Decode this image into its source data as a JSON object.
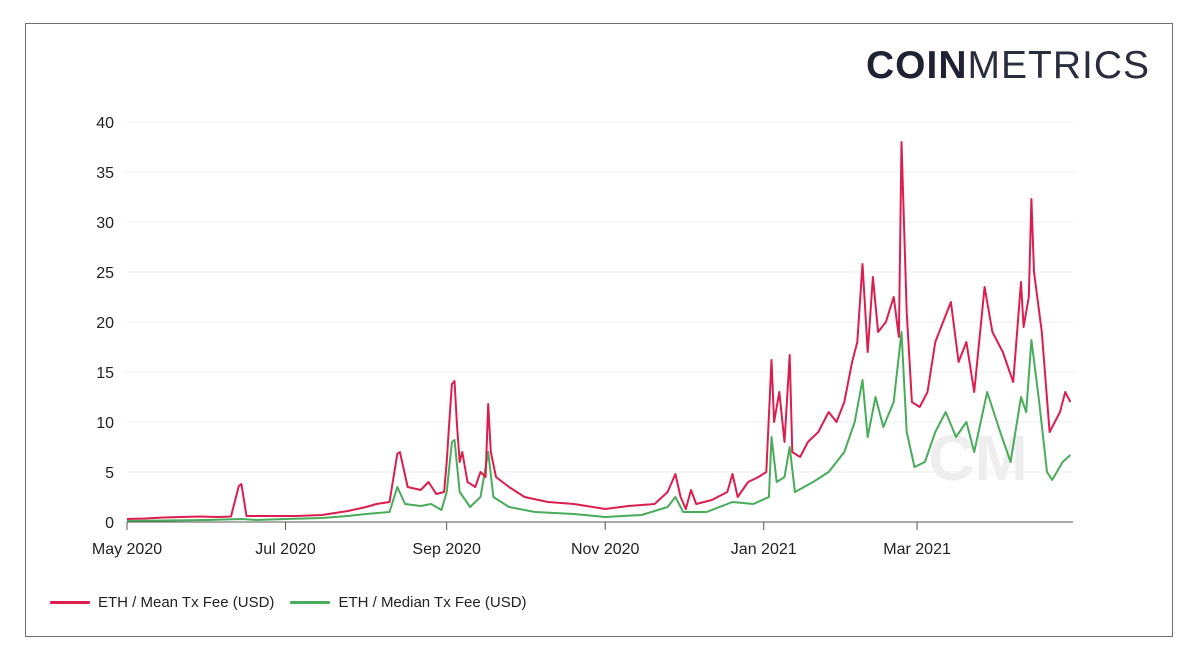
{
  "logo": {
    "bold": "COIN",
    "light": "METRICS",
    "watermark": "CM"
  },
  "colors": {
    "mean": "#dc1e4f",
    "median": "#48ac5a",
    "grid": "#ececec",
    "axis": "#555555"
  },
  "chart_data": {
    "type": "line",
    "title": "",
    "xlabel": "",
    "ylabel": "",
    "ylim": [
      0,
      40
    ],
    "yticks": [
      0,
      5,
      10,
      15,
      20,
      25,
      30,
      35,
      40
    ],
    "xlim": [
      "2020-05-01",
      "2021-04-30"
    ],
    "xticks": [
      {
        "date": "2020-05-01",
        "label": "May 2020"
      },
      {
        "date": "2020-07-01",
        "label": "Jul 2020"
      },
      {
        "date": "2020-09-01",
        "label": "Sep 2020"
      },
      {
        "date": "2020-11-01",
        "label": "Nov 2020"
      },
      {
        "date": "2021-01-01",
        "label": "Jan 2021"
      },
      {
        "date": "2021-03-01",
        "label": "Mar 2021"
      }
    ],
    "grid": true,
    "legend_position": "bottom-left",
    "series": [
      {
        "name": "ETH / Mean Tx Fee (USD)",
        "color": "#dc1e4f",
        "points": [
          [
            "2020-05-01",
            0.3
          ],
          [
            "2020-05-08",
            0.35
          ],
          [
            "2020-05-15",
            0.45
          ],
          [
            "2020-05-22",
            0.5
          ],
          [
            "2020-05-29",
            0.55
          ],
          [
            "2020-06-05",
            0.5
          ],
          [
            "2020-06-10",
            0.55
          ],
          [
            "2020-06-13",
            3.6
          ],
          [
            "2020-06-14",
            3.8
          ],
          [
            "2020-06-16",
            0.6
          ],
          [
            "2020-06-25",
            0.6
          ],
          [
            "2020-07-05",
            0.6
          ],
          [
            "2020-07-15",
            0.7
          ],
          [
            "2020-07-25",
            1.1
          ],
          [
            "2020-08-01",
            1.5
          ],
          [
            "2020-08-05",
            1.8
          ],
          [
            "2020-08-10",
            2.0
          ],
          [
            "2020-08-13",
            6.8
          ],
          [
            "2020-08-14",
            7.0
          ],
          [
            "2020-08-17",
            3.5
          ],
          [
            "2020-08-22",
            3.2
          ],
          [
            "2020-08-25",
            4.0
          ],
          [
            "2020-08-28",
            2.8
          ],
          [
            "2020-08-31",
            3.0
          ],
          [
            "2020-09-01",
            6.0
          ],
          [
            "2020-09-02",
            10.0
          ],
          [
            "2020-09-03",
            13.8
          ],
          [
            "2020-09-04",
            14.1
          ],
          [
            "2020-09-05",
            9.5
          ],
          [
            "2020-09-06",
            6.0
          ],
          [
            "2020-09-07",
            7.0
          ],
          [
            "2020-09-09",
            4.0
          ],
          [
            "2020-09-12",
            3.5
          ],
          [
            "2020-09-14",
            5.0
          ],
          [
            "2020-09-16",
            4.5
          ],
          [
            "2020-09-17",
            11.8
          ],
          [
            "2020-09-18",
            7.0
          ],
          [
            "2020-09-20",
            4.5
          ],
          [
            "2020-09-25",
            3.5
          ],
          [
            "2020-10-01",
            2.5
          ],
          [
            "2020-10-10",
            2.0
          ],
          [
            "2020-10-20",
            1.8
          ],
          [
            "2020-11-01",
            1.3
          ],
          [
            "2020-11-10",
            1.6
          ],
          [
            "2020-11-20",
            1.8
          ],
          [
            "2020-11-25",
            3.0
          ],
          [
            "2020-11-28",
            4.8
          ],
          [
            "2020-11-30",
            2.5
          ],
          [
            "2020-12-02",
            1.3
          ],
          [
            "2020-12-04",
            3.2
          ],
          [
            "2020-12-06",
            1.8
          ],
          [
            "2020-12-12",
            2.2
          ],
          [
            "2020-12-18",
            3.0
          ],
          [
            "2020-12-20",
            4.8
          ],
          [
            "2020-12-22",
            2.5
          ],
          [
            "2020-12-26",
            4.0
          ],
          [
            "2020-12-30",
            4.5
          ],
          [
            "2021-01-02",
            5.0
          ],
          [
            "2021-01-04",
            16.2
          ],
          [
            "2021-01-05",
            10.0
          ],
          [
            "2021-01-07",
            13.0
          ],
          [
            "2021-01-09",
            8.0
          ],
          [
            "2021-01-11",
            16.7
          ],
          [
            "2021-01-12",
            7.0
          ],
          [
            "2021-01-15",
            6.5
          ],
          [
            "2021-01-18",
            8.0
          ],
          [
            "2021-01-22",
            9.0
          ],
          [
            "2021-01-26",
            11.0
          ],
          [
            "2021-01-29",
            10.0
          ],
          [
            "2021-02-01",
            12.0
          ],
          [
            "2021-02-04",
            16.0
          ],
          [
            "2021-02-06",
            18.0
          ],
          [
            "2021-02-08",
            25.8
          ],
          [
            "2021-02-10",
            17.0
          ],
          [
            "2021-02-12",
            24.5
          ],
          [
            "2021-02-14",
            19.0
          ],
          [
            "2021-02-17",
            20.0
          ],
          [
            "2021-02-20",
            22.5
          ],
          [
            "2021-02-22",
            18.5
          ],
          [
            "2021-02-23",
            38.0
          ],
          [
            "2021-02-25",
            21.0
          ],
          [
            "2021-02-27",
            12.0
          ],
          [
            "2021-03-02",
            11.5
          ],
          [
            "2021-03-05",
            13.0
          ],
          [
            "2021-03-08",
            18.0
          ],
          [
            "2021-03-11",
            20.0
          ],
          [
            "2021-03-14",
            22.0
          ],
          [
            "2021-03-17",
            16.0
          ],
          [
            "2021-03-20",
            18.0
          ],
          [
            "2021-03-23",
            13.0
          ],
          [
            "2021-03-27",
            23.5
          ],
          [
            "2021-03-30",
            19.0
          ],
          [
            "2021-04-03",
            17.0
          ],
          [
            "2021-04-07",
            14.0
          ],
          [
            "2021-04-10",
            24.0
          ],
          [
            "2021-04-11",
            19.5
          ],
          [
            "2021-04-13",
            22.5
          ],
          [
            "2021-04-14",
            32.3
          ],
          [
            "2021-04-15",
            25.0
          ],
          [
            "2021-04-18",
            19.0
          ],
          [
            "2021-04-21",
            9.0
          ],
          [
            "2021-04-25",
            11.0
          ],
          [
            "2021-04-27",
            13.0
          ],
          [
            "2021-04-29",
            12.0
          ]
        ]
      },
      {
        "name": "ETH / Median Tx Fee (USD)",
        "color": "#48ac5a",
        "points": [
          [
            "2020-05-01",
            0.1
          ],
          [
            "2020-05-15",
            0.15
          ],
          [
            "2020-06-01",
            0.2
          ],
          [
            "2020-06-14",
            0.3
          ],
          [
            "2020-06-20",
            0.2
          ],
          [
            "2020-07-01",
            0.3
          ],
          [
            "2020-07-15",
            0.4
          ],
          [
            "2020-07-25",
            0.6
          ],
          [
            "2020-08-01",
            0.8
          ],
          [
            "2020-08-10",
            1.0
          ],
          [
            "2020-08-13",
            3.5
          ],
          [
            "2020-08-16",
            1.8
          ],
          [
            "2020-08-22",
            1.6
          ],
          [
            "2020-08-26",
            1.8
          ],
          [
            "2020-08-30",
            1.2
          ],
          [
            "2020-09-01",
            3.0
          ],
          [
            "2020-09-03",
            8.0
          ],
          [
            "2020-09-04",
            8.2
          ],
          [
            "2020-09-06",
            3.0
          ],
          [
            "2020-09-10",
            1.5
          ],
          [
            "2020-09-14",
            2.5
          ],
          [
            "2020-09-17",
            7.0
          ],
          [
            "2020-09-19",
            2.5
          ],
          [
            "2020-09-25",
            1.5
          ],
          [
            "2020-10-05",
            1.0
          ],
          [
            "2020-10-20",
            0.8
          ],
          [
            "2020-11-01",
            0.5
          ],
          [
            "2020-11-15",
            0.7
          ],
          [
            "2020-11-25",
            1.5
          ],
          [
            "2020-11-28",
            2.5
          ],
          [
            "2020-12-01",
            1.0
          ],
          [
            "2020-12-10",
            1.0
          ],
          [
            "2020-12-20",
            2.0
          ],
          [
            "2020-12-28",
            1.8
          ],
          [
            "2021-01-03",
            2.5
          ],
          [
            "2021-01-04",
            8.5
          ],
          [
            "2021-01-06",
            4.0
          ],
          [
            "2021-01-09",
            4.5
          ],
          [
            "2021-01-11",
            7.5
          ],
          [
            "2021-01-13",
            3.0
          ],
          [
            "2021-01-20",
            4.0
          ],
          [
            "2021-01-26",
            5.0
          ],
          [
            "2021-02-01",
            7.0
          ],
          [
            "2021-02-05",
            10.0
          ],
          [
            "2021-02-08",
            14.2
          ],
          [
            "2021-02-10",
            8.5
          ],
          [
            "2021-02-13",
            12.5
          ],
          [
            "2021-02-16",
            9.5
          ],
          [
            "2021-02-20",
            12.0
          ],
          [
            "2021-02-23",
            19.0
          ],
          [
            "2021-02-25",
            9.0
          ],
          [
            "2021-02-28",
            5.5
          ],
          [
            "2021-03-04",
            6.0
          ],
          [
            "2021-03-08",
            9.0
          ],
          [
            "2021-03-12",
            11.0
          ],
          [
            "2021-03-16",
            8.5
          ],
          [
            "2021-03-20",
            10.0
          ],
          [
            "2021-03-23",
            7.0
          ],
          [
            "2021-03-28",
            13.0
          ],
          [
            "2021-04-02",
            9.0
          ],
          [
            "2021-04-06",
            6.0
          ],
          [
            "2021-04-10",
            12.5
          ],
          [
            "2021-04-12",
            11.0
          ],
          [
            "2021-04-14",
            18.2
          ],
          [
            "2021-04-17",
            12.0
          ],
          [
            "2021-04-20",
            5.0
          ],
          [
            "2021-04-22",
            4.2
          ],
          [
            "2021-04-26",
            6.0
          ],
          [
            "2021-04-29",
            6.7
          ]
        ]
      }
    ]
  }
}
